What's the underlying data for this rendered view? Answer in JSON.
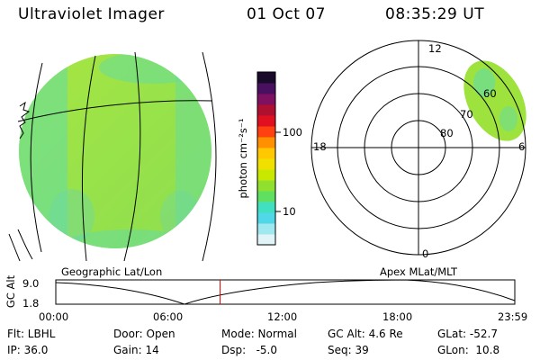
{
  "header": {
    "instrument": "Ultraviolet Imager",
    "date": "01 Oct 07",
    "time": "08:35:29 UT"
  },
  "left_panel": {
    "caption": "Geographic Lat/Lon"
  },
  "colorbar": {
    "label": "photon cm⁻²s⁻¹",
    "tick_labels": [
      "100",
      "10"
    ],
    "colors": [
      "#1a0a2a",
      "#4a1060",
      "#801060",
      "#b01030",
      "#e01020",
      "#ff4010",
      "#ff9000",
      "#ffc800",
      "#f0e000",
      "#c8e800",
      "#90e030",
      "#60e060",
      "#40e0c0",
      "#50d8e8",
      "#a0e8f0",
      "#e0f4f8"
    ]
  },
  "right_panel": {
    "caption": "Apex MLat/MLT",
    "mlt_labels": {
      "top": "12",
      "left": "18",
      "right": "6",
      "bottom": "0"
    },
    "mlat_labels": [
      "60",
      "70",
      "80"
    ]
  },
  "timeline": {
    "axis_title": "GC Alt",
    "y_labels": [
      "9.0",
      "1.8"
    ],
    "x_labels": [
      "00:00",
      "06:00",
      "12:00",
      "18:00",
      "23:59"
    ],
    "current_time_hours": 8.59,
    "marker_color": "#e00000"
  },
  "info": {
    "col1": [
      "Flt: LBHL",
      "IP: 36.0"
    ],
    "col2": [
      "Door: Open",
      "Gain: 14"
    ],
    "col3": [
      "Mode: Normal",
      "Dsp:   -5.0"
    ],
    "col4": [
      "GC Alt: 4.6 Re",
      "Seq: 39"
    ],
    "col5": [
      "GLat: -52.7",
      "GLon:  10.8"
    ]
  },
  "colors": {
    "disk_fill": "#9fe43e",
    "disk_patch": "#56dcae",
    "grid_line": "#000000"
  }
}
